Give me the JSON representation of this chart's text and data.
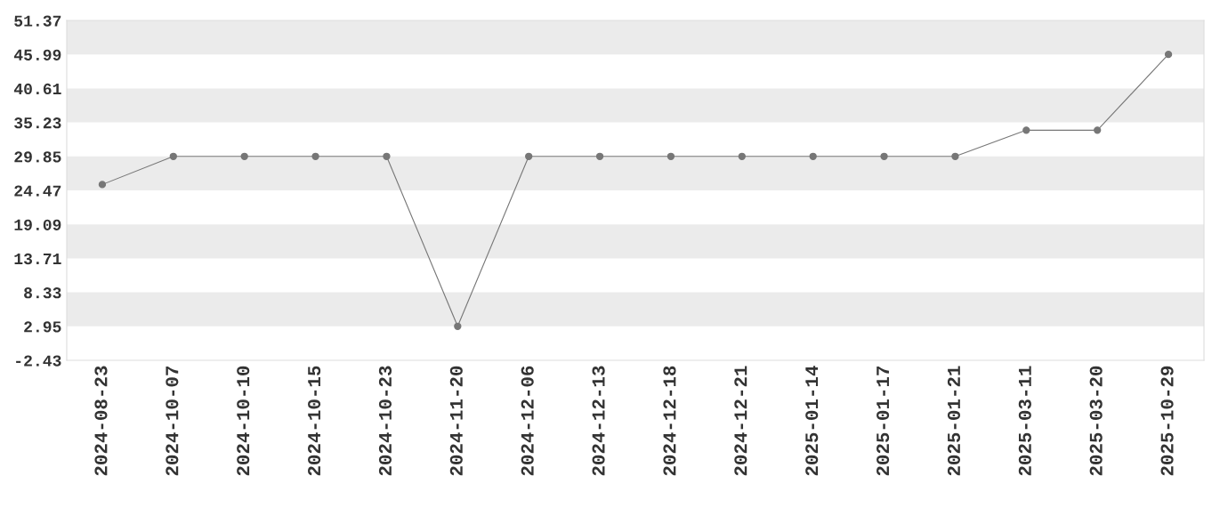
{
  "chart_data": {
    "type": "line",
    "categories": [
      "2024-08-23",
      "2024-10-07",
      "2024-10-10",
      "2024-10-15",
      "2024-10-23",
      "2024-11-20",
      "2024-12-06",
      "2024-12-13",
      "2024-12-18",
      "2024-12-21",
      "2025-01-14",
      "2025-01-17",
      "2025-01-21",
      "2025-03-11",
      "2025-03-20",
      "2025-10-29"
    ],
    "series": [
      {
        "color": "#777777",
        "values": [
          25.4,
          29.85,
          29.85,
          29.85,
          29.85,
          2.95,
          29.85,
          29.85,
          29.85,
          29.85,
          29.85,
          29.85,
          29.85,
          34.0,
          34.0,
          46.0
        ]
      }
    ],
    "ylim": [
      -2.43,
      51.37
    ],
    "yticks": [
      -2.43,
      2.95,
      8.33,
      13.71,
      19.09,
      24.47,
      29.85,
      35.23,
      40.61,
      45.99,
      51.37
    ],
    "bands": [
      {
        "axis": "y",
        "from": 45.99,
        "to": 51.37,
        "color": "#ebebeb"
      },
      {
        "axis": "y",
        "from": 35.23,
        "to": 40.61,
        "color": "#ebebeb"
      },
      {
        "axis": "y",
        "from": 24.47,
        "to": 29.85,
        "color": "#ebebeb"
      },
      {
        "axis": "y",
        "from": 13.71,
        "to": 19.09,
        "color": "#ebebeb"
      },
      {
        "axis": "y",
        "from": 2.95,
        "to": 8.33,
        "color": "#ebebeb"
      }
    ],
    "marker": "circle",
    "line_style": "solid",
    "grid": false,
    "legend": false
  }
}
